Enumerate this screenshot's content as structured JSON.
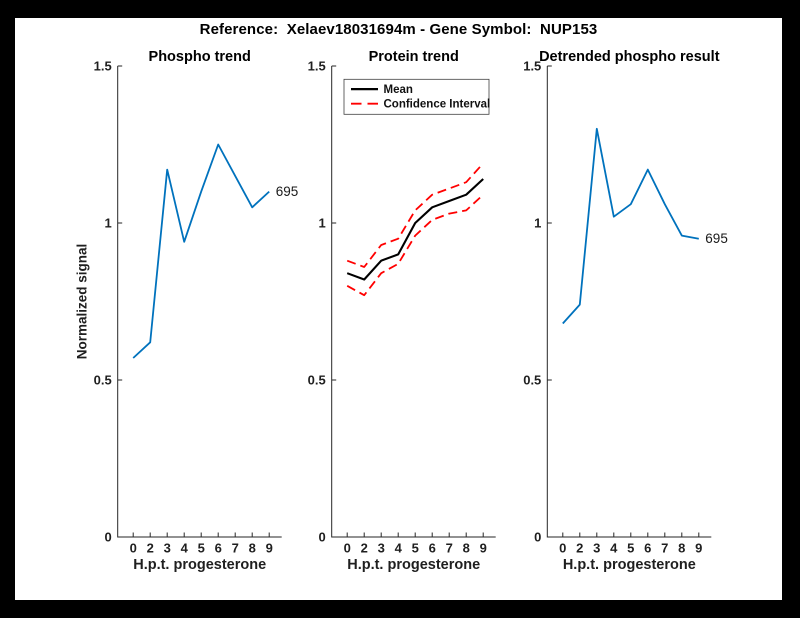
{
  "figure_title": "Reference:  Xelaev18031694m - Gene Symbol:  NUP153",
  "colors": {
    "page_background": "#000000",
    "figure_background": "#ffffff",
    "axis": "#262626",
    "blue_line": "#0072BD",
    "mean_line": "#000000",
    "ci_line": "#FF0000"
  },
  "chart_data": [
    {
      "type": "line",
      "title": "Phospho trend",
      "xlabel": "H.p.t. progesterone",
      "ylabel": "Normalized signal",
      "x_tick_labels": [
        "0",
        "2",
        "3",
        "4",
        "5",
        "6",
        "7",
        "8",
        "9"
      ],
      "y_tick_labels": [
        "0",
        "0.5",
        "1",
        "1.5"
      ],
      "y_tick_values": [
        0,
        0.5,
        1,
        1.5
      ],
      "ylim": [
        0,
        1.5
      ],
      "grid": false,
      "series": [
        {
          "name": "695",
          "color": "#0072BD",
          "dash": "solid",
          "values": [
            0.57,
            0.62,
            1.17,
            0.94,
            1.1,
            1.25,
            1.15,
            1.05,
            1.1
          ],
          "end_label": "695"
        }
      ]
    },
    {
      "type": "line",
      "title": "Protein trend",
      "xlabel": "H.p.t. progesterone",
      "ylabel": "",
      "x_tick_labels": [
        "0",
        "2",
        "3",
        "4",
        "5",
        "6",
        "7",
        "8",
        "9"
      ],
      "y_tick_labels": [
        "0",
        "0.5",
        "1",
        "1.5"
      ],
      "y_tick_values": [
        0,
        0.5,
        1,
        1.5
      ],
      "ylim": [
        0,
        1.5
      ],
      "grid": false,
      "legend": {
        "position": "northwest",
        "entries": [
          {
            "label": "Mean",
            "color": "#000000",
            "dash": "solid"
          },
          {
            "label": "Confidence Interval",
            "color": "#FF0000",
            "dash": "dashed"
          }
        ]
      },
      "series": [
        {
          "name": "Mean",
          "color": "#000000",
          "dash": "solid",
          "values": [
            0.84,
            0.82,
            0.88,
            0.9,
            1.0,
            1.05,
            1.07,
            1.09,
            1.14
          ]
        },
        {
          "name": "Confidence Interval upper",
          "color": "#FF0000",
          "dash": "dashed",
          "values": [
            0.88,
            0.86,
            0.93,
            0.95,
            1.04,
            1.09,
            1.11,
            1.13,
            1.19
          ]
        },
        {
          "name": "Confidence Interval lower",
          "color": "#FF0000",
          "dash": "dashed",
          "values": [
            0.8,
            0.77,
            0.84,
            0.87,
            0.96,
            1.01,
            1.03,
            1.04,
            1.09
          ]
        }
      ]
    },
    {
      "type": "line",
      "title": "Detrended phospho result",
      "xlabel": "H.p.t. progesterone",
      "ylabel": "",
      "x_tick_labels": [
        "0",
        "2",
        "3",
        "4",
        "5",
        "6",
        "7",
        "8",
        "9"
      ],
      "y_tick_labels": [
        "0",
        "0.5",
        "1",
        "1.5"
      ],
      "y_tick_values": [
        0,
        0.5,
        1,
        1.5
      ],
      "ylim": [
        0,
        1.5
      ],
      "grid": false,
      "series": [
        {
          "name": "695",
          "color": "#0072BD",
          "dash": "solid",
          "values": [
            0.68,
            0.74,
            1.3,
            1.02,
            1.06,
            1.17,
            1.06,
            0.96,
            0.95
          ],
          "end_label": "695"
        }
      ]
    }
  ]
}
